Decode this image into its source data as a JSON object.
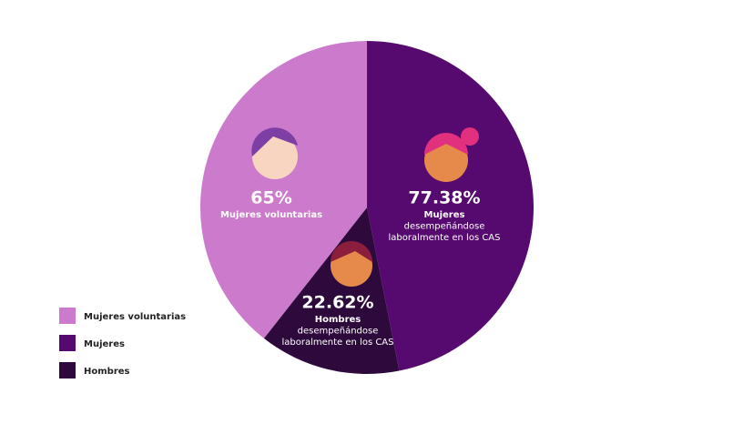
{
  "chart_data": {
    "type": "pie",
    "categories": [
      "Mujeres",
      "Hombres",
      "Mujeres voluntarias"
    ],
    "values": [
      77.38,
      22.62,
      65
    ],
    "value_labels": [
      "77.38%",
      "22.62%",
      "65%"
    ],
    "colors": [
      "#56096e",
      "#2e0a3c",
      "#cc7acb"
    ],
    "annotations": [
      [
        "Mujeres",
        "desempeñándose",
        "laboralmente en los CAS"
      ],
      [
        "Hombres",
        "desempeñándose",
        "laboralmente en los CAS"
      ],
      [
        "Mujeres voluntarias"
      ]
    ]
  }
}
